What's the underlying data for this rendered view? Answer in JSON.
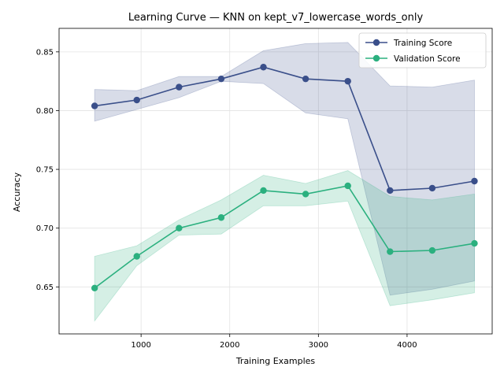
{
  "chart_data": {
    "type": "line",
    "title": "Learning Curve — KNN on kept_v7_lowercase_words_only",
    "xlabel": "Training Examples",
    "ylabel": "Accuracy",
    "xlim": [
      75,
      4960
    ],
    "ylim": [
      0.61,
      0.87
    ],
    "xticks": [
      1000,
      2000,
      3000,
      4000
    ],
    "yticks": [
      0.65,
      0.7,
      0.75,
      0.8,
      0.85
    ],
    "grid": true,
    "legend_position": "top-right",
    "x": [
      476,
      952,
      1428,
      1904,
      2380,
      2856,
      3332,
      3808,
      4284,
      4760
    ],
    "series": [
      {
        "name": "Training Score",
        "color": "#3a4f8a",
        "band_color": "#3a4f8a",
        "values": [
          0.804,
          0.809,
          0.82,
          0.827,
          0.837,
          0.827,
          0.825,
          0.732,
          0.734,
          0.74
        ],
        "upper": [
          0.818,
          0.817,
          0.829,
          0.829,
          0.851,
          0.857,
          0.858,
          0.821,
          0.82,
          0.826
        ],
        "lower": [
          0.791,
          0.801,
          0.811,
          0.825,
          0.823,
          0.798,
          0.793,
          0.643,
          0.648,
          0.655
        ]
      },
      {
        "name": "Validation Score",
        "color": "#2bb07f",
        "band_color": "#2bb07f",
        "values": [
          0.649,
          0.676,
          0.7,
          0.709,
          0.732,
          0.729,
          0.736,
          0.68,
          0.681,
          0.687
        ],
        "upper": [
          0.676,
          0.685,
          0.707,
          0.724,
          0.745,
          0.738,
          0.749,
          0.727,
          0.724,
          0.729
        ],
        "lower": [
          0.621,
          0.668,
          0.694,
          0.695,
          0.719,
          0.719,
          0.723,
          0.634,
          0.639,
          0.645
        ]
      }
    ]
  }
}
